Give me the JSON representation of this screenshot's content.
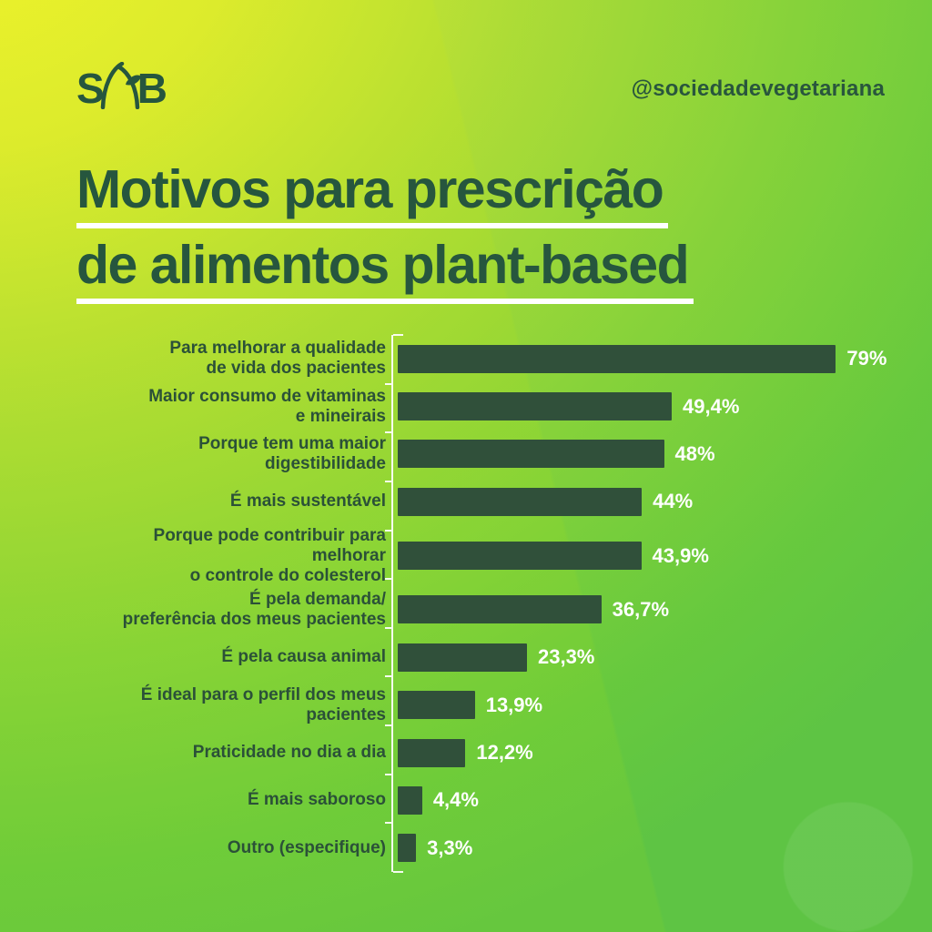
{
  "brand": {
    "logo": {
      "letter_left": "S",
      "letter_right": "B",
      "icon": "sprout-icon"
    },
    "handle": "@sociedadevegetariana"
  },
  "title": {
    "lines": [
      "Motivos para prescrição",
      "de alimentos plant-based"
    ]
  },
  "chart_data": {
    "type": "bar",
    "orientation": "horizontal",
    "title": "Motivos para prescrição de alimentos plant-based",
    "xlabel": "",
    "ylabel": "",
    "xlim": [
      0,
      96
    ],
    "grid": false,
    "legend": false,
    "value_suffix": "%",
    "decimal_separator": ",",
    "colors": {
      "bar": "#30503a",
      "value_text": "#ffffff",
      "label_text": "#2b5138",
      "axis": "#ffffff",
      "title_text": "#26563e",
      "background_from": "#f0f223",
      "background_to": "#55c13a"
    },
    "categories": [
      "Para melhorar a qualidade de vida dos pacientes",
      "Maior consumo de vitaminas e mineirais",
      "Porque tem uma maior digestibilidade",
      "É mais sustentável",
      "Porque pode contribuir para melhorar o controle do colesterol",
      "É pela demanda/ preferência dos meus pacientes",
      "É pela causa animal",
      "É ideal para o perfil dos meus pacientes",
      "Praticidade no dia a dia",
      "É mais saboroso",
      "Outro (especifique)"
    ],
    "values": [
      79,
      49.4,
      48,
      44,
      43.9,
      36.7,
      23.3,
      13.9,
      12.2,
      4.4,
      3.3
    ],
    "bars": [
      {
        "label_lines": [
          "Para melhorar a qualidade",
          "de vida dos pacientes"
        ],
        "value": 79,
        "value_label": "79%"
      },
      {
        "label_lines": [
          "Maior consumo de vitaminas",
          "e mineirais"
        ],
        "value": 49.4,
        "value_label": "49,4%"
      },
      {
        "label_lines": [
          "Porque tem uma maior digestibilidade"
        ],
        "value": 48,
        "value_label": "48%"
      },
      {
        "label_lines": [
          "É mais sustentável"
        ],
        "value": 44,
        "value_label": "44%"
      },
      {
        "label_lines": [
          "Porque pode contribuir para melhorar",
          "o controle do colesterol"
        ],
        "value": 43.9,
        "value_label": "43,9%"
      },
      {
        "label_lines": [
          "É pela demanda/",
          "preferência dos meus pacientes"
        ],
        "value": 36.7,
        "value_label": "36,7%"
      },
      {
        "label_lines": [
          "É pela causa animal"
        ],
        "value": 23.3,
        "value_label": "23,3%"
      },
      {
        "label_lines": [
          "É ideal para o perfil dos meus",
          "pacientes"
        ],
        "value": 13.9,
        "value_label": "13,9%"
      },
      {
        "label_lines": [
          "Praticidade no dia a dia"
        ],
        "value": 12.2,
        "value_label": "12,2%"
      },
      {
        "label_lines": [
          "É mais saboroso"
        ],
        "value": 4.4,
        "value_label": "4,4%"
      },
      {
        "label_lines": [
          "Outro (especifique)"
        ],
        "value": 3.3,
        "value_label": "3,3%"
      }
    ]
  }
}
